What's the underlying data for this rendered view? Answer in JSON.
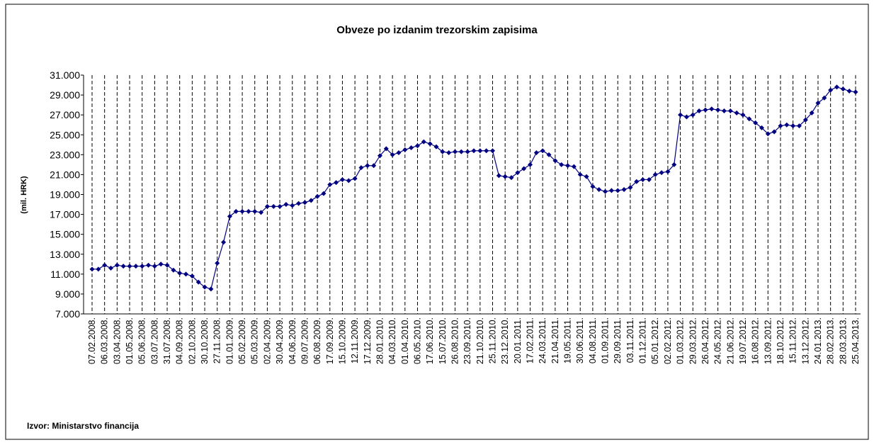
{
  "chart_data": {
    "type": "line",
    "title": "Obveze po izdanim trezorskim zapisima",
    "y_label": "(mil. HRK)",
    "source": "Izvor: Ministarstvo financija",
    "color": "#000080",
    "ylim": [
      7000,
      31000
    ],
    "yticks": [
      {
        "value": 7000,
        "label": "7.000"
      },
      {
        "value": 9000,
        "label": "9.000"
      },
      {
        "value": 11000,
        "label": "11.000"
      },
      {
        "value": 13000,
        "label": "13.000"
      },
      {
        "value": 15000,
        "label": "15.000"
      },
      {
        "value": 17000,
        "label": "17.000"
      },
      {
        "value": 19000,
        "label": "19.000"
      },
      {
        "value": 21000,
        "label": "21.000"
      },
      {
        "value": 23000,
        "label": "23.000"
      },
      {
        "value": 25000,
        "label": "25.000"
      },
      {
        "value": 27000,
        "label": "27.000"
      },
      {
        "value": 29000,
        "label": "29.000"
      },
      {
        "value": 31000,
        "label": "31.000"
      }
    ],
    "categories": [
      "07.02.2008.",
      null,
      "06.03.2008.",
      null,
      "03.04.2008.",
      null,
      "01.05.2008.",
      null,
      "05.06.2008.",
      null,
      "03.07.2008.",
      null,
      "31.07.2008.",
      null,
      "04.09.2008.",
      null,
      "02.10.2008.",
      null,
      "30.10.2008.",
      null,
      "27.11.2008.",
      null,
      "01.01.2009.",
      null,
      "05.02.2009.",
      null,
      "05.03.2009.",
      null,
      "02.04.2009.",
      null,
      "30.04.2009.",
      null,
      "04.06.2009.",
      null,
      "09.07.2009.",
      null,
      "06.08.2009.",
      null,
      "17.09.2009.",
      null,
      "15.10.2009.",
      null,
      "12.11.2009.",
      null,
      "17.12.2009.",
      null,
      "28.01.2010.",
      null,
      "04.03.2010.",
      null,
      "01.04.2010.",
      null,
      "06.05.2010.",
      null,
      "17.06.2010.",
      null,
      "15.07.2010.",
      null,
      "26.08.2010.",
      null,
      "23.09.2010.",
      null,
      "21.10.2010.",
      null,
      "25.11.2010.",
      null,
      "23.12.2010.",
      null,
      "20.01.2011.",
      null,
      "17.02.2011.",
      null,
      "24.03.2011.",
      null,
      "21.04.2011.",
      null,
      "19.05.2011.",
      null,
      "30.06.2011.",
      null,
      "04.08.2011.",
      null,
      "01.09.2011.",
      null,
      "29.09.2011.",
      null,
      "03.11.2011.",
      null,
      "01.12.2011.",
      null,
      "05.01.2012.",
      null,
      "02.02.2012.",
      null,
      "01.03.2012.",
      null,
      "29.03.2012.",
      null,
      "26.04.2012.",
      null,
      "24.05.2012.",
      null,
      "21.06.2012.",
      null,
      "19.07.2012.",
      null,
      "16.08.2012.",
      null,
      "13.09.2012.",
      null,
      "18.10.2012.",
      null,
      "15.11.2012.",
      null,
      "13.12.2012.",
      null,
      "24.01.2013.",
      null,
      "28.02.2013.",
      null,
      "28.03.2013.",
      null,
      "25.04.2013."
    ],
    "values": [
      11500,
      11500,
      11900,
      11600,
      11900,
      11800,
      11800,
      11800,
      11800,
      11900,
      11800,
      12000,
      11900,
      11400,
      11100,
      11000,
      10800,
      10200,
      9700,
      9500,
      12100,
      14200,
      16800,
      17300,
      17300,
      17300,
      17300,
      17200,
      17800,
      17800,
      17800,
      18000,
      17900,
      18100,
      18200,
      18400,
      18800,
      19100,
      20000,
      20200,
      20500,
      20400,
      20600,
      21700,
      21900,
      21900,
      22900,
      23600,
      23000,
      23200,
      23500,
      23700,
      23900,
      24300,
      24100,
      23800,
      23300,
      23200,
      23300,
      23300,
      23300,
      23400,
      23400,
      23400,
      23400,
      20900,
      20800,
      20700,
      21200,
      21600,
      22000,
      23200,
      23400,
      23000,
      22400,
      22000,
      21900,
      21800,
      21000,
      20800,
      19800,
      19500,
      19300,
      19400,
      19400,
      19500,
      19700,
      20300,
      20500,
      20500,
      21000,
      21200,
      21300,
      22000,
      27000,
      26800,
      27000,
      27400,
      27500,
      27600,
      27500,
      27400,
      27400,
      27200,
      27000,
      26600,
      26200,
      25700,
      25100,
      25300,
      25900,
      26000,
      25900,
      25900,
      26500,
      27200,
      28200,
      28700,
      29500,
      29800,
      29600,
      29400,
      29300
    ]
  }
}
